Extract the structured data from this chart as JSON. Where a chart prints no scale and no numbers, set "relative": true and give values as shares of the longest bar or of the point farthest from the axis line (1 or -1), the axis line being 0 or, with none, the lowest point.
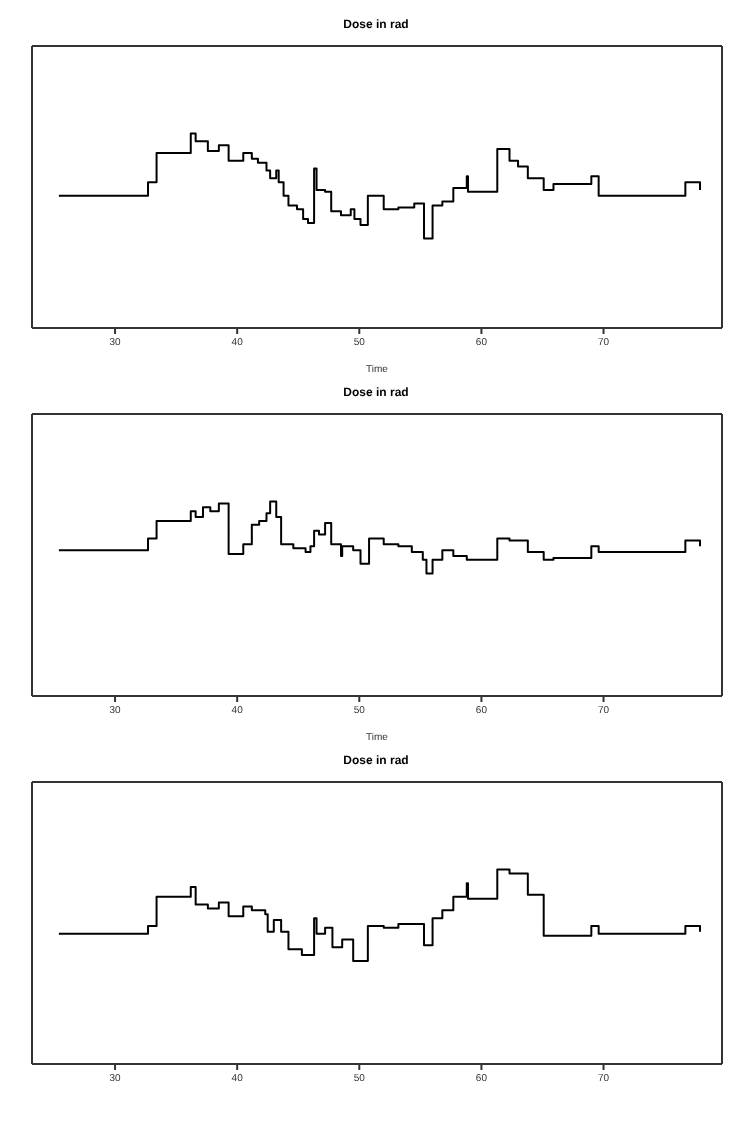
{
  "chart_data": [
    {
      "type": "step",
      "title": "Dose in rad",
      "xlabel": "Time",
      "relative": true,
      "xlim": [
        23.2,
        79.7
      ],
      "xticks": [
        30,
        40,
        50,
        60,
        70
      ],
      "color": "#000000",
      "x": [
        25.4,
        32.7,
        33.4,
        36.2,
        36.6,
        37.1,
        37.6,
        38.5,
        39.3,
        40.5,
        41.2,
        41.7,
        42.4,
        42.7,
        43.2,
        43.4,
        43.8,
        44.2,
        44.9,
        45.4,
        45.8,
        46.3,
        46.5,
        47.2,
        47.7,
        48.5,
        49.3,
        49.6,
        50.1,
        50.7,
        52.0,
        53.2,
        54.5,
        55.3,
        56.0,
        56.8,
        57.7,
        58.8,
        58.9,
        61.3,
        62.3,
        63.0,
        63.8,
        65.1,
        65.9,
        69.0,
        69.6,
        76.7,
        77.9
      ],
      "values": [
        0.68,
        0.75,
        0.9,
        1,
        0.96,
        0.96,
        0.91,
        0.94,
        0.86,
        0.9,
        0.87,
        0.85,
        0.81,
        0.77,
        0.81,
        0.75,
        0.68,
        0.63,
        0.61,
        0.56,
        0.54,
        0.82,
        0.71,
        0.7,
        0.6,
        0.58,
        0.61,
        0.56,
        0.53,
        0.68,
        0.61,
        0.62,
        0.64,
        0.46,
        0.63,
        0.65,
        0.72,
        0.78,
        0.7,
        0.92,
        0.86,
        0.83,
        0.77,
        0.71,
        0.74,
        0.78,
        0.68,
        0.75,
        0.71
      ]
    },
    {
      "type": "step",
      "title": "Dose in rad",
      "xlabel": "Time",
      "relative": true,
      "xlim": [
        23.2,
        79.7
      ],
      "xticks": [
        30,
        40,
        50,
        60,
        70
      ],
      "color": "#000000",
      "x": [
        25.4,
        32.7,
        33.4,
        36.2,
        36.6,
        37.2,
        37.8,
        38.5,
        39.3,
        40.5,
        41.2,
        41.8,
        42.4,
        42.7,
        43.2,
        43.6,
        44.6,
        45.6,
        46.0,
        46.3,
        46.7,
        47.2,
        47.7,
        48.5,
        48.6,
        49.5,
        50.1,
        50.8,
        52.0,
        53.2,
        54.3,
        55.2,
        55.5,
        56.0,
        56.8,
        57.7,
        58.8,
        61.3,
        62.3,
        63.8,
        65.1,
        65.9,
        69.0,
        69.6,
        76.7,
        77.9
      ],
      "values": [
        0.75,
        0.81,
        0.9,
        0.95,
        0.92,
        0.97,
        0.95,
        0.99,
        0.73,
        0.78,
        0.88,
        0.9,
        0.94,
        1,
        0.92,
        0.78,
        0.76,
        0.74,
        0.77,
        0.85,
        0.83,
        0.89,
        0.78,
        0.72,
        0.77,
        0.75,
        0.68,
        0.81,
        0.78,
        0.77,
        0.74,
        0.7,
        0.63,
        0.7,
        0.75,
        0.72,
        0.7,
        0.81,
        0.8,
        0.74,
        0.7,
        0.71,
        0.77,
        0.74,
        0.8,
        0.77
      ]
    },
    {
      "type": "step",
      "title": "Dose in rad",
      "relative": true,
      "xlim": [
        23.2,
        79.7
      ],
      "xticks": [
        30,
        40,
        50,
        60,
        70
      ],
      "color": "#000000",
      "x": [
        25.4,
        32.7,
        33.4,
        36.2,
        36.6,
        37.6,
        38.5,
        39.3,
        40.5,
        41.2,
        42.3,
        42.5,
        43.0,
        43.6,
        44.2,
        45.3,
        46.3,
        46.5,
        47.2,
        47.8,
        48.6,
        49.5,
        50.7,
        52.0,
        53.2,
        55.3,
        56.0,
        56.8,
        57.7,
        58.8,
        58.9,
        61.3,
        62.3,
        63.8,
        65.1,
        69.0,
        69.6,
        76.7,
        77.9
      ],
      "values": [
        0.67,
        0.71,
        0.86,
        0.91,
        0.82,
        0.8,
        0.83,
        0.76,
        0.81,
        0.79,
        0.77,
        0.68,
        0.74,
        0.68,
        0.59,
        0.56,
        0.75,
        0.67,
        0.7,
        0.6,
        0.64,
        0.53,
        0.71,
        0.7,
        0.72,
        0.61,
        0.75,
        0.79,
        0.86,
        0.93,
        0.85,
        1,
        0.98,
        0.87,
        0.66,
        0.71,
        0.67,
        0.71,
        0.68
      ]
    }
  ]
}
